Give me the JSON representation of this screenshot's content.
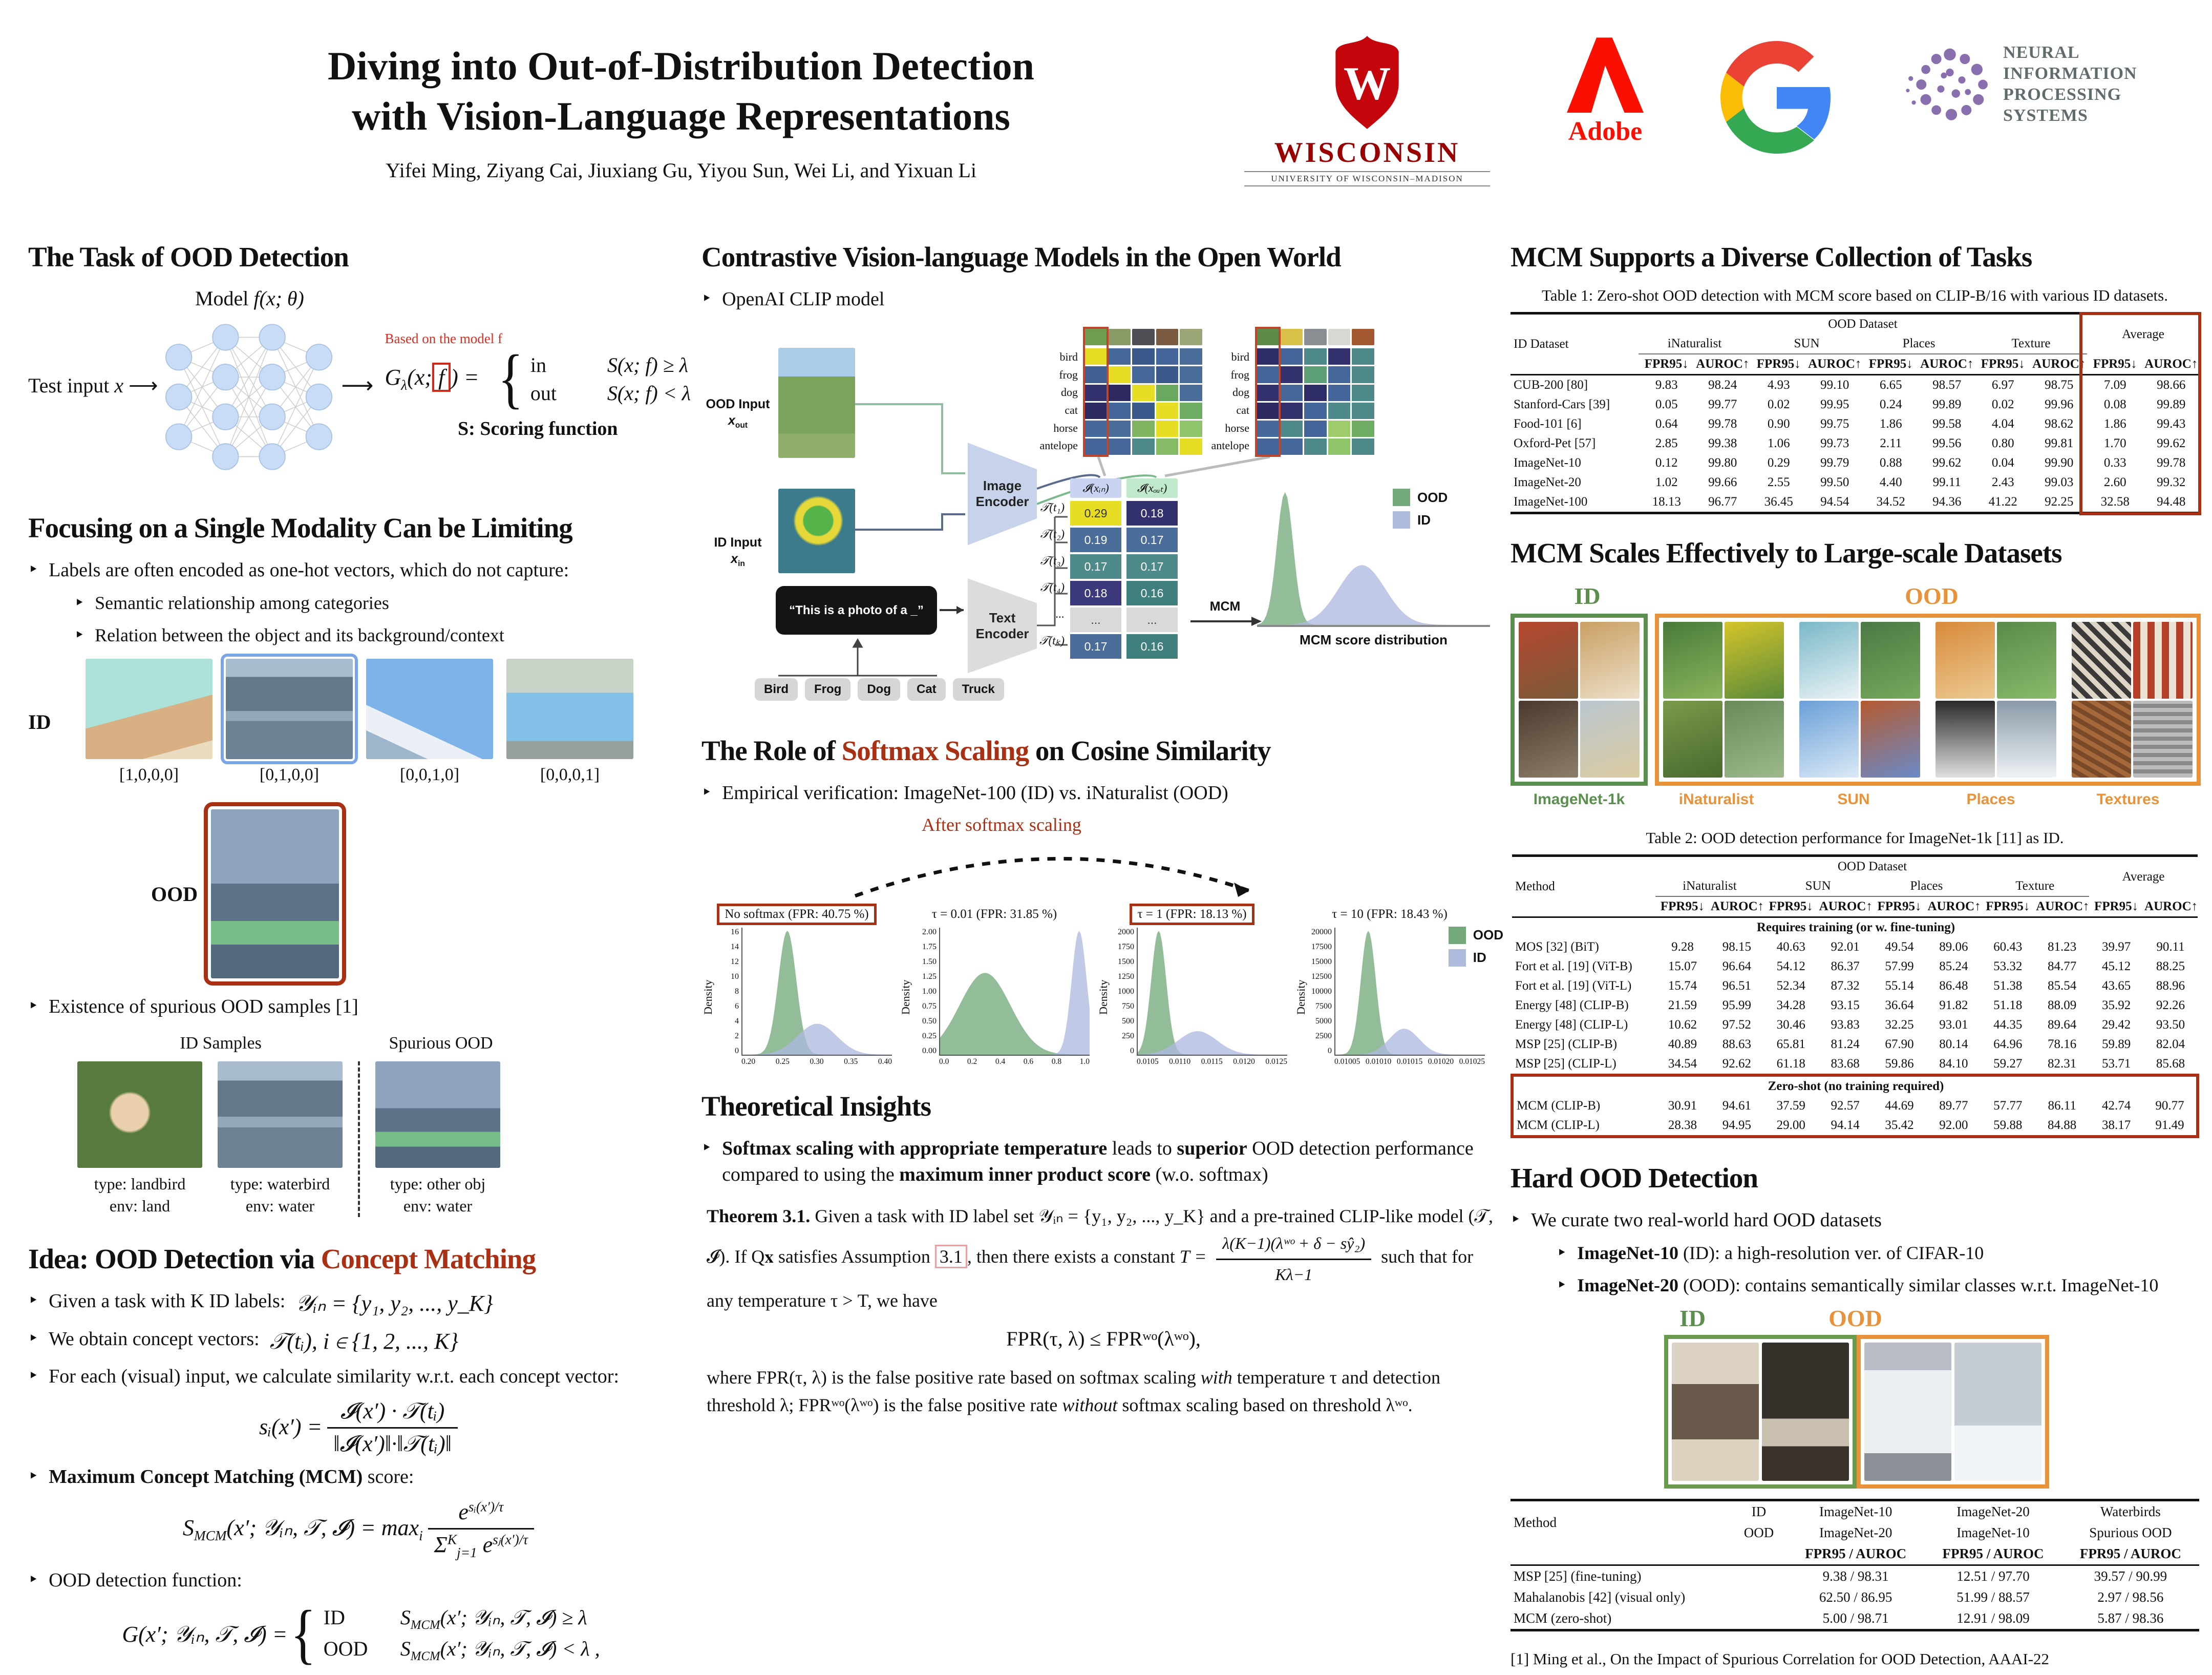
{
  "icons": {
    "arrow_right": "⟶",
    "brace": "{"
  },
  "header": {
    "title1": "Diving into Out-of-Distribution Detection",
    "title2": "with Vision-Language Representations",
    "authors": "Yifei Ming, Ziyang Cai, Jiuxiang Gu, Yiyou Sun, Wei Li, and Yixuan Li",
    "wisconsin": {
      "monogram": "W",
      "name": "WISCONSIN",
      "sub": "UNIVERSITY OF WISCONSIN–MADISON"
    },
    "adobe": {
      "name": "Adobe"
    },
    "neurips": {
      "line1": "NEURAL INFORMATION",
      "line2": "PROCESSING SYSTEMS"
    }
  },
  "left": {
    "task": {
      "heading": "The Task of OOD Detection",
      "model_label": "Model",
      "model_math": "f(x; θ)",
      "test_input": "Test input",
      "test_math": "x",
      "based_on": "Based on the model f",
      "g_pre": "G",
      "g_sub": "λ",
      "g_args": "(x;",
      "g_f": "f",
      "g_eq": ") =",
      "case1_out": "in",
      "case1_cond": "S(x; f) ≥ λ",
      "case2_out": "out",
      "case2_cond": "S(x; f) < λ",
      "scoring": "S: Scoring function"
    },
    "modality": {
      "heading": "Focusing on a Single Modality Can be Limiting",
      "b1": "Labels are often encoded as one-hot vectors, which do not capture:",
      "b1a": "Semantic relationship among categories",
      "b1b": "Relation between the object and its background/context",
      "id_label": "ID",
      "ood_label": "OOD",
      "onehots": [
        "[1,0,0,0]",
        "[0,1,0,0]",
        "[0,0,1,0]",
        "[0,0,0,1]"
      ],
      "b2": "Existence of spurious OOD samples [1]",
      "group_id": "ID Samples",
      "group_spurious": "Spurious OOD",
      "samples": [
        {
          "t": "type: landbird",
          "e": "env: land"
        },
        {
          "t": "type: waterbird",
          "e": "env: water"
        },
        {
          "t": "type: other obj",
          "e": "env: water"
        }
      ]
    },
    "idea": {
      "heading_black": "Idea: OOD Detection via ",
      "heading_red": "Concept Matching",
      "b1": "Given a task with K ID labels:",
      "f1": "𝒴ᵢₙ = {y₁, y₂, ..., y_K}",
      "b2": "We obtain concept vectors:",
      "f2": "𝒯(tᵢ), i ∈ {1, 2, ..., K}",
      "b3": "For each (visual) input, we calculate similarity w.r.t. each concept vector:",
      "sim_lhs": "sᵢ(x′) =",
      "sim_num": "𝓘(x′) · 𝒯(tᵢ)",
      "sim_den": "‖𝓘(x′)‖·‖𝒯(tᵢ)‖",
      "b4_bold": "Maximum Concept Matching (MCM)",
      "b4_rest": " score:",
      "mcm_s": "S",
      "mcm_s_sub": "MCM",
      "mcm_args": "(x′; 𝒴ᵢₙ, 𝒯, 𝓘) = max",
      "mcm_max_sub": "i",
      "mcm_e": "e",
      "mcm_num_exp": "sᵢ(x′)/τ",
      "mcm_sigma": "Σ",
      "mcm_sig_sup": "K",
      "mcm_sig_sub": "j=1",
      "mcm_den_e": "e",
      "mcm_den_exp": "sⱼ(x′)/τ",
      "b5": "OOD detection function:",
      "g_lhs": "G(x′; 𝒴ᵢₙ, 𝒯, 𝓘) =",
      "c1_out": "ID",
      "c1_pre": "S",
      "c1_sub": "MCM",
      "c1_rest": "(x′; 𝒴ᵢₙ, 𝒯, 𝓘) ≥ λ",
      "c2_out": "OOD",
      "c2_pre": "S",
      "c2_sub": "MCM",
      "c2_rest": "(x′; 𝒴ᵢₙ, 𝒯, 𝓘) < λ ,"
    }
  },
  "mid": {
    "clip": {
      "heading": "Contrastive Vision-language Models in the Open World",
      "bullet": "OpenAI CLIP model",
      "ood_l1": "OOD Input",
      "ood_main": "x",
      "ood_sub": "out",
      "id_l1": "ID Input",
      "id_main": "x",
      "id_sub": "in",
      "image_encoder": "Image Encoder",
      "text_encoder": "Text Encoder",
      "prompt": "“This is a photo of a _”",
      "classes": [
        "Bird",
        "Frog",
        "Dog",
        "Cat",
        "Truck"
      ],
      "hm_rows": [
        "bird",
        "frog",
        "dog",
        "cat",
        "horse",
        "antelope"
      ],
      "hm_left": [
        [
          "#e8dd25",
          "#46679a",
          "#3a5a8c",
          "#44659a",
          "#4a6d9a"
        ],
        [
          "#3f5f90",
          "#e8dd25",
          "#46679a",
          "#3a5a8c",
          "#4a6d9a"
        ],
        [
          "#34326e",
          "#2c2a60",
          "#e8dd25",
          "#69a85f",
          "#4a6d9a"
        ],
        [
          "#2c2a60",
          "#44659a",
          "#3a5a8c",
          "#e8dd25",
          "#6fae62"
        ],
        [
          "#46679a",
          "#4a6d9a",
          "#7fb561",
          "#e8dd25",
          "#8ec46a"
        ],
        [
          "#44659a",
          "#46679a",
          "#4f8a8b",
          "#86bb65",
          "#e8dd25"
        ]
      ],
      "hm_right": [
        [
          "#2e2c66",
          "#44659a",
          "#4f8a8b",
          "#34326e",
          "#4f8a8b"
        ],
        [
          "#44659a",
          "#34326e",
          "#5da077",
          "#46679a",
          "#4f8a8b"
        ],
        [
          "#34326e",
          "#46679a",
          "#2e2c66",
          "#44659a",
          "#4f8a8b"
        ],
        [
          "#2c2a60",
          "#34326e",
          "#44659a",
          "#4f8a8b",
          "#4f8a8b"
        ],
        [
          "#46679a",
          "#4f8a8b",
          "#44659a",
          "#9ecb6b",
          "#6fae62"
        ],
        [
          "#44659a",
          "#46679a",
          "#4f8a8b",
          "#8ec46a",
          "#4f8a8b"
        ]
      ],
      "thumbs_left": [
        "#6f9c4e",
        "#8a9a66",
        "#4e4f55",
        "#7a5a40",
        "#9aa578"
      ],
      "thumbs_right": [
        "#5d8a46",
        "#d9c049",
        "#8a8d92",
        "#d8d8d2",
        "#a4582f"
      ],
      "vec_in_header": "𝓘(xᵢₙ)",
      "vec_out_header": "𝓘(xₒᵤₜ)",
      "vec_labels": [
        "𝒯(t₁)",
        "𝒯(t₂)",
        "𝒯(t₃)",
        "𝒯(t₄)",
        "...",
        "𝒯(tₖ)"
      ],
      "vec_in_vals": [
        "0.29",
        "0.19",
        "0.17",
        "0.18",
        "...",
        "0.17"
      ],
      "vec_in_colors": [
        "#e8dd25",
        "#4a6d9a",
        "#4f8a8b",
        "#3c3a7d",
        "#d9d9d9",
        "#4a6d9a"
      ],
      "vec_out_vals": [
        "0.18",
        "0.17",
        "0.17",
        "0.16",
        "...",
        "0.16"
      ],
      "vec_out_colors": [
        "#34326e",
        "#4a6d9a",
        "#4f8a8b",
        "#3f7f7d",
        "#d9d9d9",
        "#3f7f7d"
      ],
      "mcm_label": "MCM",
      "dist": {
        "series": [
          {
            "mu": 0.12,
            "sigma": 0.035,
            "h": 1.0,
            "color": "#74a97c"
          },
          {
            "mu": 0.45,
            "sigma": 0.1,
            "h": 0.45,
            "color": "#aebade"
          }
        ]
      },
      "dist_xlabel": "MCM score distribution",
      "legend_ood": "OOD",
      "legend_id": "ID"
    },
    "softmax": {
      "heading_pre": "The Role of ",
      "heading_red": "Softmax Scaling",
      "heading_post": " on Cosine Similarity",
      "bullet": "Empirical verification: ImageNet-100 (ID) vs. iNaturalist (OOD)",
      "annotation": "After softmax scaling",
      "ylabel": "Density",
      "plots": [
        {
          "title": "No softmax (FPR: 40.75 %)",
          "boxed": true,
          "yticks": [
            "16",
            "14",
            "12",
            "10",
            "8",
            "6",
            "4",
            "2",
            "0"
          ],
          "xticks": [
            "0.20",
            "0.25",
            "0.30",
            "0.35",
            "0.40"
          ],
          "series": [
            {
              "mu": 0.3,
              "sigma": 0.06,
              "h": 1.0,
              "color": "#74a97c"
            },
            {
              "mu": 0.5,
              "sigma": 0.13,
              "h": 0.25,
              "color": "#aebade"
            }
          ]
        },
        {
          "title": "τ = 0.01 (FPR: 31.85 %)",
          "boxed": false,
          "yticks": [
            "2.00",
            "1.75",
            "1.50",
            "1.25",
            "1.00",
            "0.75",
            "0.50",
            "0.25",
            "0.00"
          ],
          "xticks": [
            "0.0",
            "0.2",
            "0.4",
            "0.6",
            "0.8",
            "1.0"
          ],
          "series": [
            {
              "mu": 0.3,
              "sigma": 0.17,
              "h": 0.66,
              "color": "#74a97c"
            },
            {
              "mu": 0.93,
              "sigma": 0.05,
              "h": 1.0,
              "color": "#aebade"
            }
          ]
        },
        {
          "title": "τ = 1 (FPR: 18.13 %)",
          "boxed": true,
          "yticks": [
            "2000",
            "1750",
            "1500",
            "1250",
            "1000",
            "750",
            "500",
            "250",
            "0"
          ],
          "xticks": [
            "0.0105",
            "0.0110",
            "0.0115",
            "0.0120",
            "0.0125"
          ],
          "series": [
            {
              "mu": 0.14,
              "sigma": 0.05,
              "h": 1.0,
              "color": "#74a97c"
            },
            {
              "mu": 0.4,
              "sigma": 0.13,
              "h": 0.19,
              "color": "#aebade"
            }
          ]
        },
        {
          "title": "τ = 10 (FPR: 18.43 %)",
          "boxed": false,
          "yticks": [
            "20000",
            "17500",
            "15000",
            "12500",
            "10000",
            "7500",
            "5000",
            "2500",
            "0"
          ],
          "xticks": [
            "0.01005",
            "0.01010",
            "0.01015",
            "0.01020",
            "0.01025"
          ],
          "series": [
            {
              "mu": 0.22,
              "sigma": 0.05,
              "h": 1.0,
              "color": "#74a97c"
            },
            {
              "mu": 0.46,
              "sigma": 0.1,
              "h": 0.21,
              "color": "#aebade"
            }
          ]
        }
      ],
      "legend_ood": "OOD",
      "legend_id": "ID"
    },
    "theory": {
      "heading": "Theoretical Insights",
      "t1": "Softmax scaling with appropriate temperature",
      "t2": " leads to ",
      "t3": "superior",
      "t4": " OOD detection performance compared to using the ",
      "t5": "maximum inner product score",
      "t6": " (w.o. softmax)",
      "thm_label": "Theorem 3.1.",
      "thm_a": "Given a task with ID label set 𝒴ᵢₙ = {y₁, y₂, ..., y_K} and a pre-trained CLIP-like model (𝒯, 𝓘). If Q𝐱 satisfies Assumption",
      "thm_ref": "3.1",
      "thm_b": ", then there exists a constant",
      "thm_T": "T =",
      "thm_num": "λ(K−1)(λʷᵒ + δ − sŷ₂)",
      "thm_den": "Kλ−1",
      "thm_c": "such that for any temperature τ > T, we have",
      "fpr": "FPR(τ, λ) ≤ FPRʷᵒ(λʷᵒ),",
      "w1": "where FPR(τ, λ) is the false positive rate based on softmax scaling ",
      "w2": "with",
      "w3": " temperature τ and detection threshold λ; FPRʷᵒ(λʷᵒ) is the false positive rate ",
      "w4": "without",
      "w5": " softmax scaling based on threshold λʷᵒ."
    }
  },
  "right": {
    "tasks_heading": "MCM Supports a Diverse Collection of Tasks",
    "table1": {
      "caption": "Table 1: Zero-shot OOD detection with MCM score based on CLIP-B/16 with various ID datasets.",
      "id_col": "ID Dataset",
      "ood_group": "OOD Dataset",
      "avg": "Average",
      "groups": [
        "iNaturalist",
        "SUN",
        "Places",
        "Texture"
      ],
      "fpr": "FPR95↓",
      "auroc": "AUROC↑",
      "rows": [
        [
          "CUB-200 [80]",
          "9.83",
          "98.24",
          "4.93",
          "99.10",
          "6.65",
          "98.57",
          "6.97",
          "98.75",
          "7.09",
          "98.66"
        ],
        [
          "Stanford-Cars [39]",
          "0.05",
          "99.77",
          "0.02",
          "99.95",
          "0.24",
          "99.89",
          "0.02",
          "99.96",
          "0.08",
          "99.89"
        ],
        [
          "Food-101 [6]",
          "0.64",
          "99.78",
          "0.90",
          "99.75",
          "1.86",
          "99.58",
          "4.04",
          "98.62",
          "1.86",
          "99.43"
        ],
        [
          "Oxford-Pet [57]",
          "2.85",
          "99.38",
          "1.06",
          "99.73",
          "2.11",
          "99.56",
          "0.80",
          "99.81",
          "1.70",
          "99.62"
        ],
        [
          "ImageNet-10",
          "0.12",
          "99.80",
          "0.29",
          "99.79",
          "0.88",
          "99.62",
          "0.04",
          "99.90",
          "0.33",
          "99.78"
        ],
        [
          "ImageNet-20",
          "1.02",
          "99.66",
          "2.55",
          "99.50",
          "4.40",
          "99.11",
          "2.43",
          "99.03",
          "2.60",
          "99.32"
        ],
        [
          "ImageNet-100",
          "18.13",
          "96.77",
          "36.45",
          "94.54",
          "34.52",
          "94.36",
          "41.22",
          "92.25",
          "32.58",
          "94.48"
        ]
      ]
    },
    "scale_heading": "MCM Scales Effectively to Large-scale Datasets",
    "scale": {
      "id": "ID",
      "ood": "OOD",
      "labels": [
        "ImageNet-1k",
        "iNaturalist",
        "SUN",
        "Places",
        "Textures"
      ]
    },
    "table2": {
      "caption": "Table 2: OOD detection performance for ImageNet-1k [11] as ID.",
      "method_col": "Method",
      "ood_group": "OOD Dataset",
      "avg": "Average",
      "groups": [
        "iNaturalist",
        "SUN",
        "Places",
        "Texture"
      ],
      "fpr": "FPR95↓",
      "auroc": "AUROC↑",
      "section1": "Requires training (or w. fine-tuning)",
      "rows1": [
        [
          "MOS [32] (BiT)",
          "9.28",
          "98.15",
          "40.63",
          "92.01",
          "49.54",
          "89.06",
          "60.43",
          "81.23",
          "39.97",
          "90.11"
        ],
        [
          "Fort et al. [19] (ViT-B)",
          "15.07",
          "96.64",
          "54.12",
          "86.37",
          "57.99",
          "85.24",
          "53.32",
          "84.77",
          "45.12",
          "88.25"
        ],
        [
          "Fort et al. [19] (ViT-L)",
          "15.74",
          "96.51",
          "52.34",
          "87.32",
          "55.14",
          "86.48",
          "51.38",
          "85.54",
          "43.65",
          "88.96"
        ],
        [
          "Energy [48] (CLIP-B)",
          "21.59",
          "95.99",
          "34.28",
          "93.15",
          "36.64",
          "91.82",
          "51.18",
          "88.09",
          "35.92",
          "92.26"
        ],
        [
          "Energy [48] (CLIP-L)",
          "10.62",
          "97.52",
          "30.46",
          "93.83",
          "32.25",
          "93.01",
          "44.35",
          "89.64",
          "29.42",
          "93.50"
        ],
        [
          "MSP [25] (CLIP-B)",
          "40.89",
          "88.63",
          "65.81",
          "81.24",
          "67.90",
          "80.14",
          "64.96",
          "78.16",
          "59.89",
          "82.04"
        ],
        [
          "MSP [25] (CLIP-L)",
          "34.54",
          "92.62",
          "61.18",
          "83.68",
          "59.86",
          "84.10",
          "59.27",
          "82.31",
          "53.71",
          "85.68"
        ]
      ],
      "section2": "Zero-shot (no training required)",
      "rows2": [
        [
          "MCM (CLIP-B)",
          "30.91",
          "94.61",
          "37.59",
          "92.57",
          "44.69",
          "89.77",
          "57.77",
          "86.11",
          "42.74",
          "90.77"
        ],
        [
          "MCM (CLIP-L)",
          "28.38",
          "94.95",
          "29.00",
          "94.14",
          "35.42",
          "92.00",
          "59.88",
          "84.88",
          "38.17",
          "91.49"
        ]
      ]
    },
    "hard": {
      "heading": "Hard OOD Detection",
      "b1": "We curate two real-world hard OOD datasets",
      "b2_bold": "ImageNet-10",
      "b2_rest": " (ID): a high-resolution ver. of CIFAR-10",
      "b3_bold": "ImageNet-20",
      "b3_rest": " (OOD): contains semantically similar classes w.r.t. ImageNet-10",
      "id": "ID",
      "ood": "OOD",
      "table": {
        "method_col": "Method",
        "id_row": "ID",
        "ood_row": "OOD",
        "cols": [
          [
            "ImageNet-10",
            "ImageNet-20"
          ],
          [
            "ImageNet-20",
            "ImageNet-10"
          ],
          [
            "Waterbirds",
            "Spurious OOD"
          ]
        ],
        "metric": "FPR95 / AUROC",
        "rows": [
          [
            "MSP [25] (fine-tuning)",
            "9.38 / 98.31",
            "12.51 / 97.70",
            "39.57 / 90.99"
          ],
          [
            "Mahalanobis [42] (visual only)",
            "62.50 / 86.95",
            "51.99 / 88.57",
            "2.97 / 98.56"
          ],
          [
            "MCM (zero-shot)",
            "5.00 / 98.71",
            "12.91 / 98.09",
            "5.87 / 98.36"
          ]
        ]
      }
    },
    "footnote": "[1] Ming et al., On the Impact of Spurious Correlation for OOD Detection, AAAI-22"
  }
}
